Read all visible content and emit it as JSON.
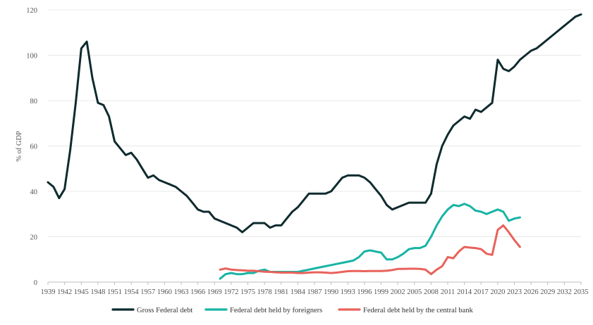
{
  "chart_data": {
    "type": "line",
    "ylabel": "% of GDP",
    "xlabel": "",
    "ylim": [
      0,
      120
    ],
    "xlim": [
      1939,
      2035
    ],
    "yticks": [
      "0",
      "20",
      "40",
      "60",
      "80",
      "100",
      "120"
    ],
    "xticks": [
      "1939",
      "1942",
      "1945",
      "1948",
      "1951",
      "1954",
      "1957",
      "1960",
      "1963",
      "1966",
      "1969",
      "1972",
      "1975",
      "1978",
      "1981",
      "1984",
      "1987",
      "1990",
      "1993",
      "1996",
      "1999",
      "2002",
      "2005",
      "2008",
      "2011",
      "2014",
      "2017",
      "2020",
      "2023",
      "2026",
      "2029",
      "2032",
      "2035"
    ],
    "grid": "horizontal",
    "legend_position": "bottom",
    "series": [
      {
        "name": "Gross Federal debt",
        "color": "#0f2b2f",
        "points": [
          [
            1939,
            44
          ],
          [
            1940,
            42
          ],
          [
            1941,
            37
          ],
          [
            1942,
            41
          ],
          [
            1943,
            58
          ],
          [
            1944,
            79
          ],
          [
            1945,
            103
          ],
          [
            1946,
            106
          ],
          [
            1947,
            90
          ],
          [
            1948,
            79
          ],
          [
            1949,
            78
          ],
          [
            1950,
            73
          ],
          [
            1951,
            62
          ],
          [
            1952,
            59
          ],
          [
            1953,
            56
          ],
          [
            1954,
            57
          ],
          [
            1955,
            54
          ],
          [
            1956,
            50
          ],
          [
            1957,
            46
          ],
          [
            1958,
            47
          ],
          [
            1959,
            45
          ],
          [
            1960,
            44
          ],
          [
            1961,
            43
          ],
          [
            1962,
            42
          ],
          [
            1963,
            40
          ],
          [
            1964,
            38
          ],
          [
            1965,
            35
          ],
          [
            1966,
            32
          ],
          [
            1967,
            31
          ],
          [
            1968,
            31
          ],
          [
            1969,
            28
          ],
          [
            1970,
            27
          ],
          [
            1971,
            26
          ],
          [
            1972,
            25
          ],
          [
            1973,
            24
          ],
          [
            1974,
            22
          ],
          [
            1975,
            24
          ],
          [
            1976,
            26
          ],
          [
            1977,
            26
          ],
          [
            1978,
            26
          ],
          [
            1979,
            24
          ],
          [
            1980,
            25
          ],
          [
            1981,
            25
          ],
          [
            1982,
            28
          ],
          [
            1983,
            31
          ],
          [
            1984,
            33
          ],
          [
            1985,
            36
          ],
          [
            1986,
            39
          ],
          [
            1987,
            39
          ],
          [
            1988,
            39
          ],
          [
            1989,
            39
          ],
          [
            1990,
            40
          ],
          [
            1991,
            43
          ],
          [
            1992,
            46
          ],
          [
            1993,
            47
          ],
          [
            1994,
            47
          ],
          [
            1995,
            47
          ],
          [
            1996,
            46
          ],
          [
            1997,
            44
          ],
          [
            1998,
            41
          ],
          [
            1999,
            38
          ],
          [
            2000,
            34
          ],
          [
            2001,
            32
          ],
          [
            2002,
            33
          ],
          [
            2003,
            34
          ],
          [
            2004,
            35
          ],
          [
            2005,
            35
          ],
          [
            2006,
            35
          ],
          [
            2007,
            35
          ],
          [
            2008,
            39
          ],
          [
            2009,
            52
          ],
          [
            2010,
            60
          ],
          [
            2011,
            65
          ],
          [
            2012,
            69
          ],
          [
            2013,
            71
          ],
          [
            2014,
            73
          ],
          [
            2015,
            72
          ],
          [
            2016,
            76
          ],
          [
            2017,
            75
          ],
          [
            2018,
            77
          ],
          [
            2019,
            79
          ],
          [
            2020,
            98
          ],
          [
            2021,
            94
          ],
          [
            2022,
            93
          ],
          [
            2023,
            95
          ],
          [
            2024,
            98
          ],
          [
            2025,
            100
          ],
          [
            2026,
            102
          ],
          [
            2027,
            103
          ],
          [
            2028,
            105
          ],
          [
            2029,
            107
          ],
          [
            2030,
            109
          ],
          [
            2031,
            111
          ],
          [
            2032,
            113
          ],
          [
            2033,
            115
          ],
          [
            2034,
            117
          ],
          [
            2035,
            118
          ]
        ]
      },
      {
        "name": "Federal debt held by foreigners",
        "color": "#17b4a4",
        "points": [
          [
            1970,
            1.5
          ],
          [
            1971,
            3.5
          ],
          [
            1972,
            4
          ],
          [
            1973,
            3.5
          ],
          [
            1974,
            3.5
          ],
          [
            1975,
            4
          ],
          [
            1976,
            4
          ],
          [
            1977,
            5
          ],
          [
            1978,
            5.5
          ],
          [
            1979,
            4.5
          ],
          [
            1980,
            4.5
          ],
          [
            1981,
            4.5
          ],
          [
            1982,
            4.5
          ],
          [
            1983,
            4.5
          ],
          [
            1984,
            4.5
          ],
          [
            1985,
            5
          ],
          [
            1986,
            5.5
          ],
          [
            1987,
            6
          ],
          [
            1988,
            6.5
          ],
          [
            1989,
            7
          ],
          [
            1990,
            7.5
          ],
          [
            1991,
            8
          ],
          [
            1992,
            8.5
          ],
          [
            1993,
            9
          ],
          [
            1994,
            9.5
          ],
          [
            1995,
            11
          ],
          [
            1996,
            13.5
          ],
          [
            1997,
            14
          ],
          [
            1998,
            13.5
          ],
          [
            1999,
            13
          ],
          [
            2000,
            10
          ],
          [
            2001,
            10
          ],
          [
            2002,
            11
          ],
          [
            2003,
            12.5
          ],
          [
            2004,
            14.5
          ],
          [
            2005,
            15
          ],
          [
            2006,
            15
          ],
          [
            2007,
            16
          ],
          [
            2008,
            20
          ],
          [
            2009,
            25
          ],
          [
            2010,
            29
          ],
          [
            2011,
            32
          ],
          [
            2012,
            34
          ],
          [
            2013,
            33.5
          ],
          [
            2014,
            34.5
          ],
          [
            2015,
            33.5
          ],
          [
            2016,
            31.5
          ],
          [
            2017,
            31
          ],
          [
            2018,
            30
          ],
          [
            2019,
            31
          ],
          [
            2020,
            32
          ],
          [
            2021,
            31
          ],
          [
            2022,
            27
          ],
          [
            2023,
            28
          ],
          [
            2024,
            28.5
          ]
        ]
      },
      {
        "name": "Federal debt held by the central bank",
        "color": "#e8625b",
        "points": [
          [
            1970,
            5.5
          ],
          [
            1971,
            6
          ],
          [
            1972,
            5.5
          ],
          [
            1973,
            5.3
          ],
          [
            1974,
            5.2
          ],
          [
            1975,
            5
          ],
          [
            1976,
            5
          ],
          [
            1977,
            4.8
          ],
          [
            1978,
            4.6
          ],
          [
            1979,
            4.5
          ],
          [
            1980,
            4.3
          ],
          [
            1981,
            4.2
          ],
          [
            1982,
            4.2
          ],
          [
            1983,
            4.2
          ],
          [
            1984,
            4
          ],
          [
            1985,
            4
          ],
          [
            1986,
            4.2
          ],
          [
            1987,
            4.3
          ],
          [
            1988,
            4.3
          ],
          [
            1989,
            4.2
          ],
          [
            1990,
            4
          ],
          [
            1991,
            4.2
          ],
          [
            1992,
            4.5
          ],
          [
            1993,
            4.8
          ],
          [
            1994,
            4.9
          ],
          [
            1995,
            4.9
          ],
          [
            1996,
            4.8
          ],
          [
            1997,
            4.9
          ],
          [
            1998,
            4.9
          ],
          [
            1999,
            4.9
          ],
          [
            2000,
            5
          ],
          [
            2001,
            5.3
          ],
          [
            2002,
            5.8
          ],
          [
            2003,
            5.8
          ],
          [
            2004,
            5.9
          ],
          [
            2005,
            5.9
          ],
          [
            2006,
            5.8
          ],
          [
            2007,
            5.5
          ],
          [
            2008,
            3.5
          ],
          [
            2009,
            5.5
          ],
          [
            2010,
            7
          ],
          [
            2011,
            11
          ],
          [
            2012,
            10.5
          ],
          [
            2013,
            13.5
          ],
          [
            2014,
            15.5
          ],
          [
            2015,
            15.2
          ],
          [
            2016,
            15
          ],
          [
            2017,
            14.5
          ],
          [
            2018,
            12.5
          ],
          [
            2019,
            12
          ],
          [
            2020,
            23
          ],
          [
            2021,
            25
          ],
          [
            2022,
            22
          ],
          [
            2023,
            18.5
          ],
          [
            2024,
            15.5
          ]
        ]
      }
    ]
  }
}
